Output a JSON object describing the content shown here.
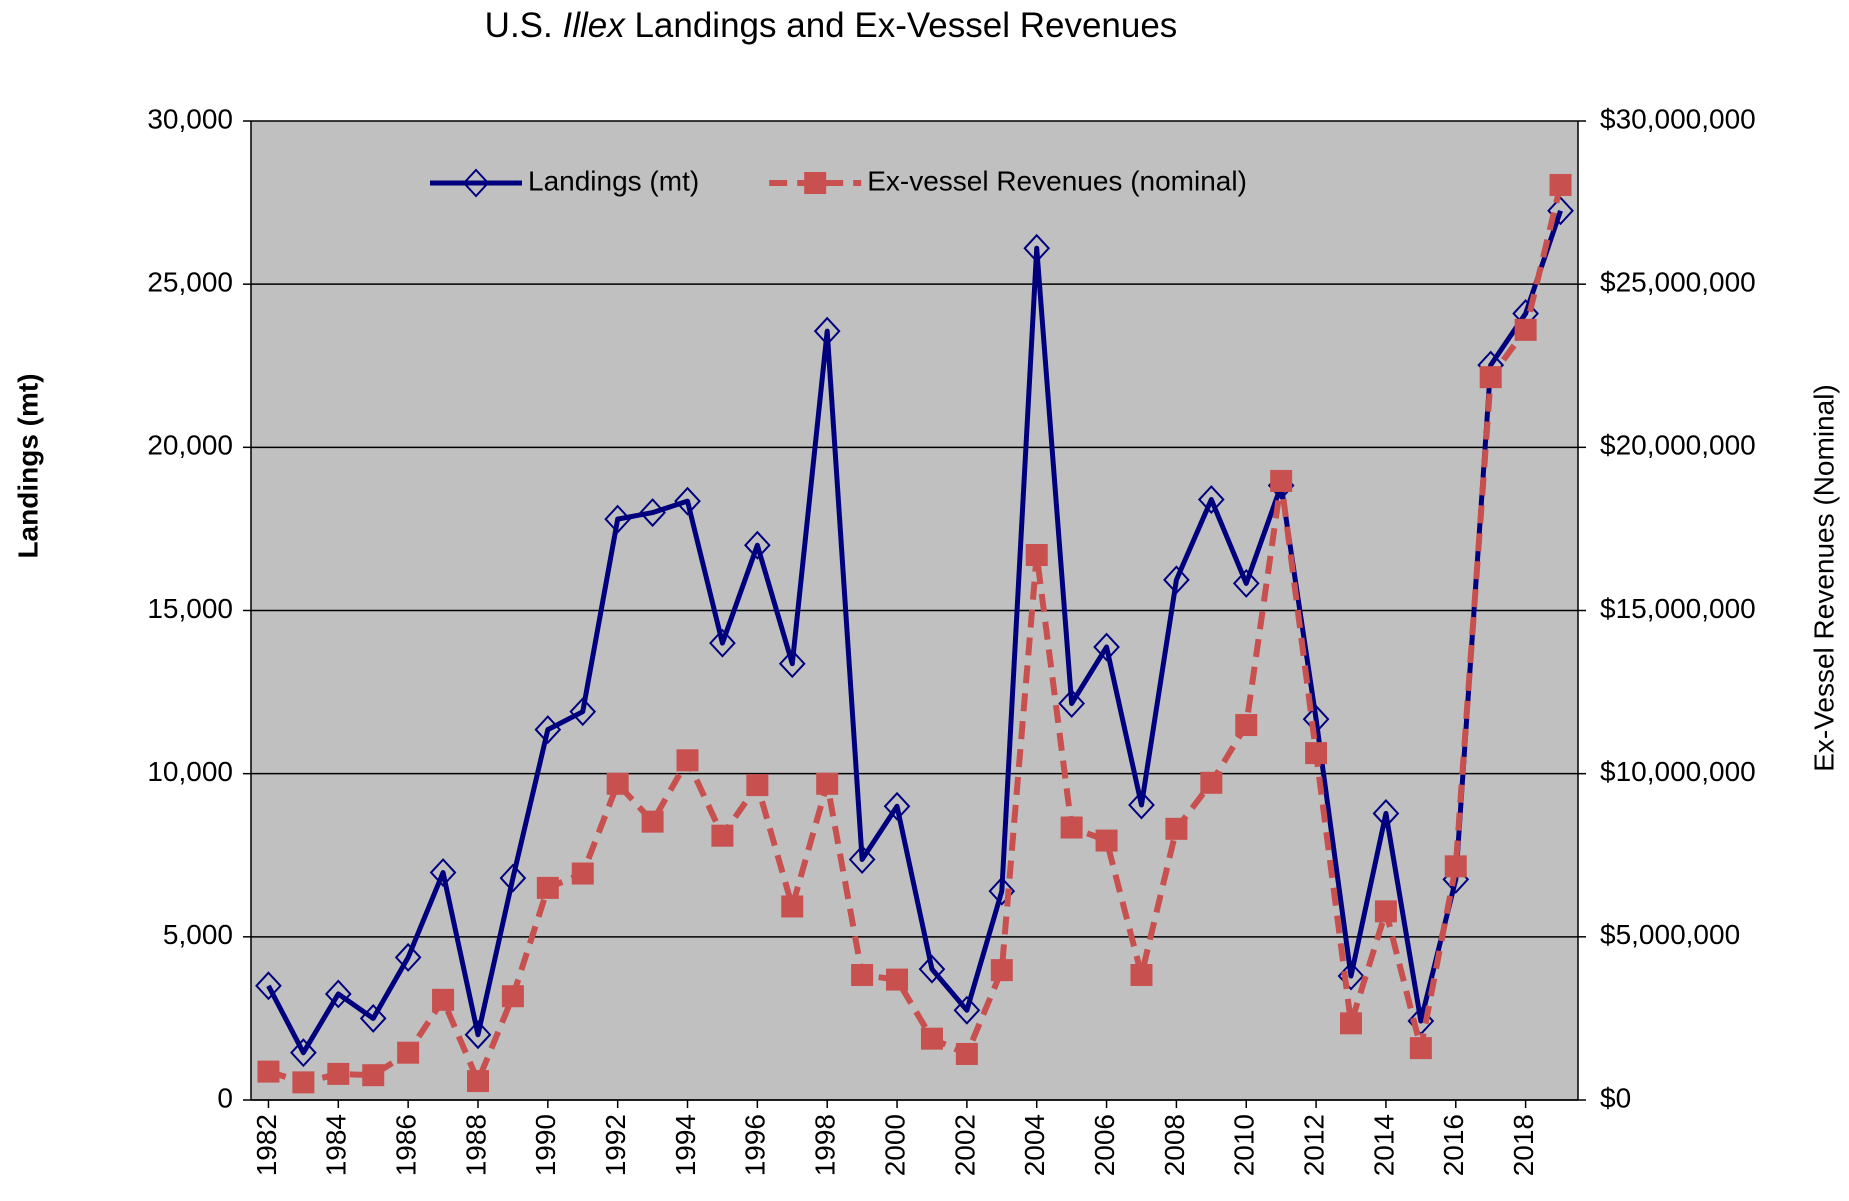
{
  "chart_data": {
    "type": "line",
    "title_parts": [
      "U.S. ",
      "Illex",
      " Landings and Ex-Vessel Revenues"
    ],
    "y_label": "Landings (mt)",
    "y2_label": "Ex-Vessel Revenues (Nominal)",
    "x": [
      1982,
      1983,
      1984,
      1985,
      1986,
      1987,
      1988,
      1989,
      1990,
      1991,
      1992,
      1993,
      1994,
      1995,
      1996,
      1997,
      1998,
      1999,
      2000,
      2001,
      2002,
      2003,
      2004,
      2005,
      2006,
      2007,
      2008,
      2009,
      2010,
      2011,
      2012,
      2013,
      2014,
      2015,
      2016,
      2017,
      2018,
      2019
    ],
    "xlim": [
      1981.5,
      2019.5
    ],
    "xticks": [
      1982,
      1984,
      1986,
      1988,
      1990,
      1992,
      1994,
      1996,
      1998,
      2000,
      2002,
      2004,
      2006,
      2008,
      2010,
      2012,
      2014,
      2016,
      2018
    ],
    "ylim": [
      0,
      30000
    ],
    "yticks": [
      0,
      {
        "value": 5000,
        "label": "5,000"
      },
      {
        "value": 10000,
        "label": "10,000"
      },
      {
        "value": 15000,
        "label": "15,000"
      },
      {
        "value": 20000,
        "label": "20,000"
      },
      {
        "value": 25000,
        "label": "25,000"
      },
      {
        "value": 30000,
        "label": "30,000"
      }
    ],
    "y2lim": [
      0,
      30000000
    ],
    "y2ticks": [
      {
        "value": 0,
        "label": "$0"
      },
      {
        "value": 5000000,
        "label": "$5,000,000"
      },
      {
        "value": 10000000,
        "label": "$10,000,000"
      },
      {
        "value": 15000000,
        "label": "$15,000,000"
      },
      {
        "value": 20000000,
        "label": "$20,000,000"
      },
      {
        "value": 25000000,
        "label": "$25,000,000"
      },
      {
        "value": 30000000,
        "label": "$30,000,000"
      }
    ],
    "grid": true,
    "legend": "top",
    "series": [
      {
        "name": "Landings (mt)",
        "color": "#00007f",
        "marker": "diamond",
        "dash": false,
        "values": [
          3500,
          1450,
          3250,
          2500,
          4370,
          6970,
          2000,
          6800,
          11350,
          11900,
          17800,
          18000,
          18350,
          14000,
          17000,
          13370,
          23560,
          7370,
          9000,
          4010,
          2750,
          6400,
          26100,
          12150,
          13880,
          9040,
          15940,
          18400,
          15830,
          18830,
          11670,
          3800,
          8780,
          2420,
          6760,
          22520,
          24100,
          27250
        ]
      },
      {
        "name": "Ex-vessel Revenues (nominal)",
        "color": "#c8504f",
        "marker": "square",
        "dash": true,
        "axis": "y2",
        "values": [
          870000,
          540000,
          800000,
          760000,
          1450000,
          3070000,
          580000,
          3180000,
          6500000,
          6940000,
          9690000,
          8530000,
          10410000,
          8100000,
          9650000,
          5930000,
          9690000,
          3830000,
          3690000,
          1880000,
          1410000,
          3980000,
          16700000,
          8350000,
          7950000,
          3830000,
          8310000,
          9720000,
          11490000,
          18970000,
          10630000,
          2350000,
          5780000,
          1590000,
          7160000,
          22150000,
          23600000,
          28040000
        ]
      }
    ]
  }
}
